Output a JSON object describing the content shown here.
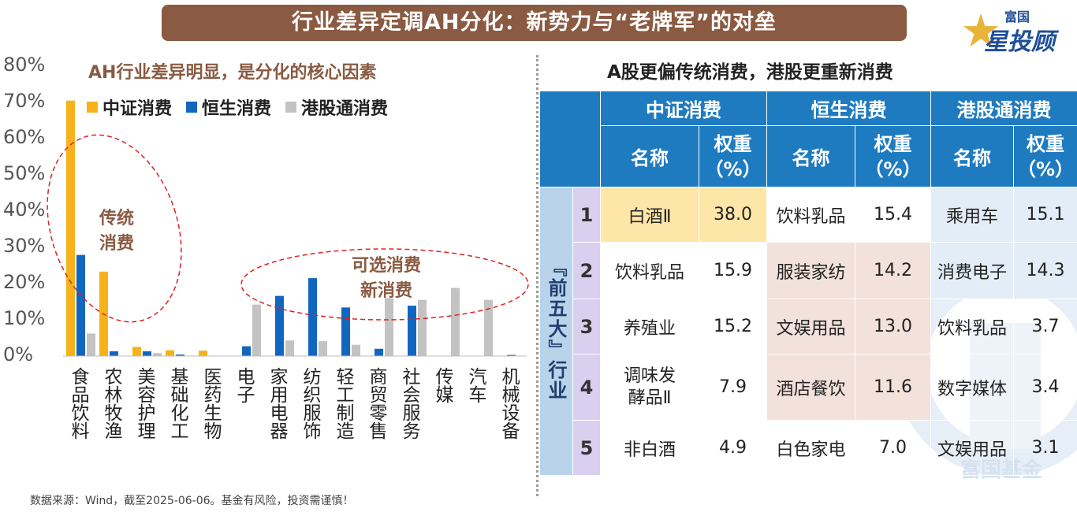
{
  "banner": {
    "title": "行业差异定调AH分化：新势力与“老牌军”的对垒"
  },
  "logo": {
    "line1": "富国",
    "line2": "星投顾"
  },
  "left_panel": {
    "title": "AH行业差异明显，是分化的核心因素",
    "notes": {
      "traditional": "传统\n消费",
      "optional": "可选消费\n新消费"
    }
  },
  "colors": {
    "series_a": "#f7b21b",
    "series_b": "#1166c0",
    "series_c": "#c3c3c3",
    "banner": "#8a5a42",
    "header": "#1f7bc0"
  },
  "chart_data": {
    "type": "bar",
    "title": "AH行业差异明显，是分化的核心因素",
    "categories": [
      "食品饮料",
      "农林牧渔",
      "美容护理",
      "基础化工",
      "医药生物",
      "电子",
      "家用电器",
      "纺织服饰",
      "轻工制造",
      "商贸零售",
      "社会服务",
      "传媒",
      "汽车",
      "机械设备"
    ],
    "series": [
      {
        "name": "中证消费",
        "values": [
          70.5,
          23.3,
          2.5,
          1.6,
          1.5,
          0,
          0,
          0,
          0,
          0,
          0,
          0,
          0,
          0
        ]
      },
      {
        "name": "恒生消费",
        "values": [
          27.9,
          1.3,
          1.3,
          0.4,
          0,
          2.7,
          16.6,
          21.5,
          13.4,
          2.0,
          13.9,
          0,
          0,
          0.3
        ]
      },
      {
        "name": "港股通消费",
        "values": [
          6.2,
          0,
          0.8,
          0,
          0,
          14.2,
          4.3,
          4.1,
          3.1,
          16.0,
          15.5,
          18.8,
          15.5,
          0
        ]
      }
    ],
    "yticks": [
      "0%",
      "10%",
      "20%",
      "30%",
      "40%",
      "50%",
      "60%",
      "70%",
      "80%"
    ],
    "ylim": [
      0,
      80
    ],
    "legend_position": "top",
    "grid": false
  },
  "right_panel": {
    "title": "A股更偏传统消费，港股更重新消费",
    "groups": [
      "中证消费",
      "恒生消费",
      "港股通消费"
    ],
    "col_name": "名称",
    "col_weight": "权重\n（%）",
    "row_group_label": "『前五大』行业",
    "rows": [
      {
        "rank": "1",
        "a_name": "白酒Ⅱ",
        "a_w": "38.0",
        "b_name": "饮料乳品",
        "b_w": "15.4",
        "c_name": "乘用车",
        "c_w": "15.1"
      },
      {
        "rank": "2",
        "a_name": "饮料乳品",
        "a_w": "15.9",
        "b_name": "服装家纺",
        "b_w": "14.2",
        "c_name": "消费电子",
        "c_w": "14.3"
      },
      {
        "rank": "3",
        "a_name": "养殖业",
        "a_w": "15.2",
        "b_name": "文娱用品",
        "b_w": "13.0",
        "c_name": "饮料乳品",
        "c_w": "3.7"
      },
      {
        "rank": "4",
        "a_name": "调味发\n酵品Ⅱ",
        "a_w": "7.9",
        "b_name": "酒店餐饮",
        "b_w": "11.6",
        "c_name": "数字媒体",
        "c_w": "3.4"
      },
      {
        "rank": "5",
        "a_name": "非白酒",
        "a_w": "4.9",
        "b_name": "白色家电",
        "b_w": "7.0",
        "c_name": "文娱用品",
        "c_w": "3.1"
      }
    ]
  },
  "watermark": {
    "text": "富国基金"
  },
  "footer": {
    "source": "数据来源：Wind，截至2025-06-06。基金有风险，投资需谨慎！"
  }
}
